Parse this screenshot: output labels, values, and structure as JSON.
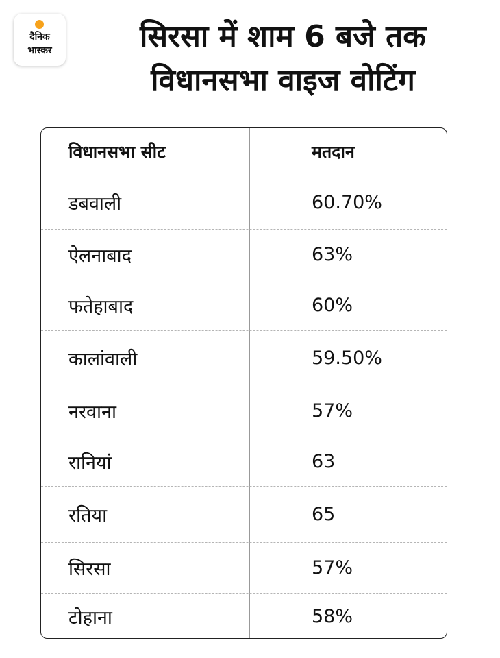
{
  "logo": {
    "line1": "दैनिक",
    "line2": "भास्कर",
    "colors": {
      "sun": "#f7a21b"
    }
  },
  "title": {
    "line1": "सिरसा में शाम 6 बजे तक",
    "line2": "विधानसभा वाइज वोटिंग"
  },
  "table": {
    "headers": [
      "विधानसभा सीट",
      "मतदान"
    ],
    "rows": [
      {
        "seat": "डबवाली",
        "turnout": "60.70%"
      },
      {
        "seat": "ऐलनाबाद",
        "turnout": "63%"
      },
      {
        "seat": "फतेहाबाद",
        "turnout": "60%"
      },
      {
        "seat": "कालांवाली",
        "turnout": "59.50%"
      },
      {
        "seat": "नरवाना",
        "turnout": "57%"
      },
      {
        "seat": "रानियां",
        "turnout": "63"
      },
      {
        "seat": "रतिया",
        "turnout": "65"
      },
      {
        "seat": "सिरसा",
        "turnout": "57%"
      },
      {
        "seat": "टोहाना",
        "turnout": "58%"
      }
    ]
  }
}
